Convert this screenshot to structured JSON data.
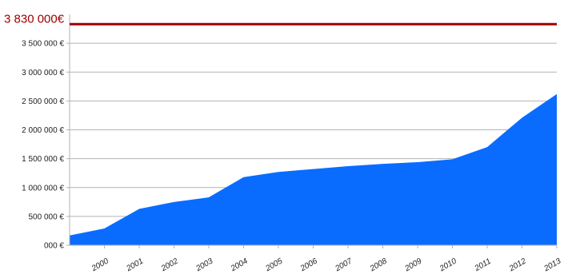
{
  "chart_data": {
    "type": "area",
    "x": [
      "1999",
      "2000",
      "2001",
      "2002",
      "2003",
      "2004",
      "2005",
      "2006",
      "2007",
      "2008",
      "2009",
      "2010",
      "2011",
      "2012",
      "2013"
    ],
    "values": [
      170000,
      290000,
      630000,
      750000,
      830000,
      1180000,
      1270000,
      1320000,
      1370000,
      1410000,
      1440000,
      1490000,
      1700000,
      2210000,
      2620000
    ],
    "x_tick_labels": [
      "2000",
      "2001",
      "2002",
      "2003",
      "2004",
      "2005",
      "2006",
      "2007",
      "2008",
      "2009",
      "2010",
      "2011",
      "2012",
      "2013"
    ],
    "y_ticks": [
      {
        "value": 0,
        "label": "000 €"
      },
      {
        "value": 500000,
        "label": "500 000 €"
      },
      {
        "value": 1000000,
        "label": "1 000 000 €"
      },
      {
        "value": 1500000,
        "label": "1 500 000 €"
      },
      {
        "value": 2000000,
        "label": "2 000 000 €"
      },
      {
        "value": 2500000,
        "label": "2 500 000 €"
      },
      {
        "value": 3000000,
        "label": "3 000 000 €"
      },
      {
        "value": 3500000,
        "label": "3 500 000 €"
      }
    ],
    "ylim": [
      0,
      4000000
    ],
    "reference_line": {
      "value": 3830000,
      "label": "3 830 000€",
      "color": "#a00000"
    },
    "area_color": "#0a6cff",
    "grid": true,
    "title": "",
    "xlabel": "",
    "ylabel": ""
  }
}
